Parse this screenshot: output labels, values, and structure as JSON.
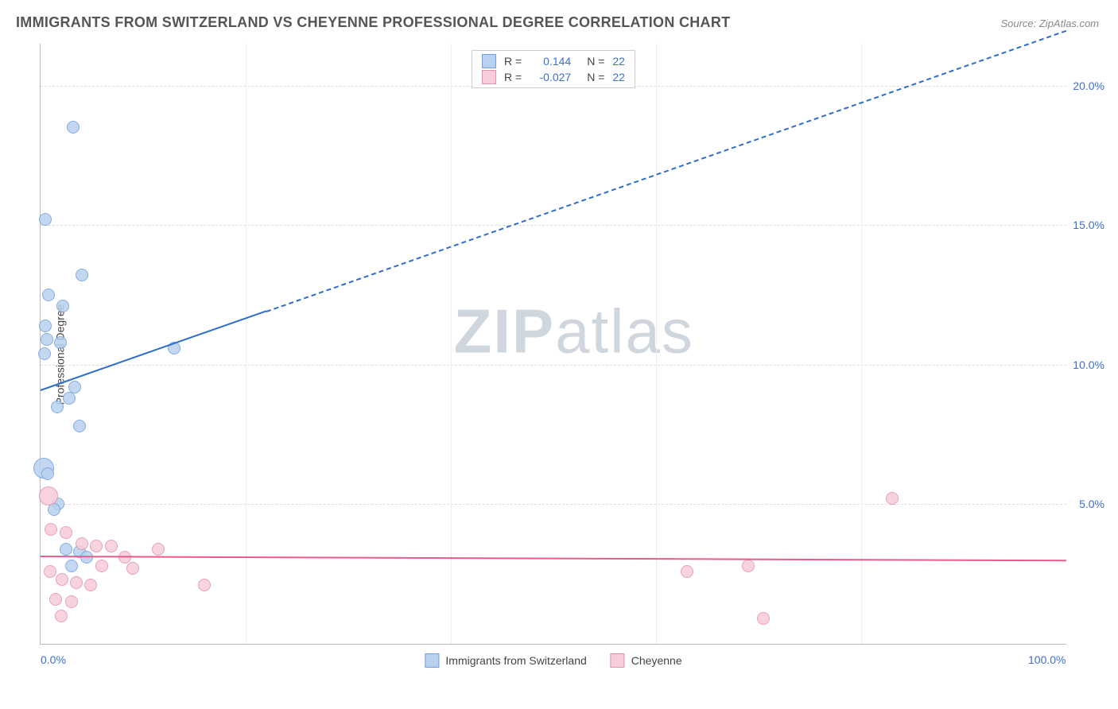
{
  "title": "IMMIGRANTS FROM SWITZERLAND VS CHEYENNE PROFESSIONAL DEGREE CORRELATION CHART",
  "source": "Source: ZipAtlas.com",
  "y_axis_label": "Professional Degree",
  "watermark_bold": "ZIP",
  "watermark_rest": "atlas",
  "chart": {
    "xlim": [
      0,
      100
    ],
    "ylim": [
      0,
      21.5
    ],
    "x_ticks": [
      {
        "value": 0,
        "label": "0.0%"
      },
      {
        "value": 100,
        "label": "100.0%"
      }
    ],
    "y_ticks": [
      {
        "value": 5,
        "label": "5.0%"
      },
      {
        "value": 10,
        "label": "10.0%"
      },
      {
        "value": 15,
        "label": "15.0%"
      },
      {
        "value": 20,
        "label": "20.0%"
      }
    ],
    "v_gridlines": [
      20,
      40,
      60,
      80
    ],
    "background": "#ffffff",
    "grid_color": "#dddddd"
  },
  "series": [
    {
      "id": "swiss",
      "label": "Immigrants from Switzerland",
      "fill": "#b9d1ef",
      "stroke": "#6fa0dd",
      "line_color": "#2f6cd0",
      "R": "0.144",
      "N": "22",
      "marker_radius": 8,
      "points": [
        {
          "x": 3.2,
          "y": 18.5,
          "r": 8
        },
        {
          "x": 0.5,
          "y": 15.2,
          "r": 8
        },
        {
          "x": 4.0,
          "y": 13.2,
          "r": 8
        },
        {
          "x": 0.8,
          "y": 12.5,
          "r": 8
        },
        {
          "x": 2.2,
          "y": 12.1,
          "r": 8
        },
        {
          "x": 0.5,
          "y": 11.4,
          "r": 8
        },
        {
          "x": 0.6,
          "y": 10.9,
          "r": 8
        },
        {
          "x": 1.9,
          "y": 10.8,
          "r": 8
        },
        {
          "x": 13.0,
          "y": 10.6,
          "r": 8
        },
        {
          "x": 0.4,
          "y": 10.4,
          "r": 8
        },
        {
          "x": 3.3,
          "y": 9.2,
          "r": 8
        },
        {
          "x": 2.8,
          "y": 8.8,
          "r": 8
        },
        {
          "x": 1.6,
          "y": 8.5,
          "r": 8
        },
        {
          "x": 3.8,
          "y": 7.8,
          "r": 8
        },
        {
          "x": 0.3,
          "y": 6.3,
          "r": 13
        },
        {
          "x": 0.7,
          "y": 6.1,
          "r": 8
        },
        {
          "x": 1.7,
          "y": 5.0,
          "r": 8
        },
        {
          "x": 1.3,
          "y": 4.8,
          "r": 8
        },
        {
          "x": 2.5,
          "y": 3.4,
          "r": 8
        },
        {
          "x": 3.8,
          "y": 3.3,
          "r": 8
        },
        {
          "x": 3.0,
          "y": 2.8,
          "r": 8
        },
        {
          "x": 4.5,
          "y": 3.1,
          "r": 8
        }
      ],
      "trend": {
        "x1": 0,
        "y1": 9.1,
        "x2": 100,
        "y2": 22.0,
        "solid_frac": 0.22
      }
    },
    {
      "id": "cheyenne",
      "label": "Cheyenne",
      "fill": "#f6cdd8",
      "stroke": "#e590ab",
      "line_color": "#e65d89",
      "R": "-0.027",
      "N": "22",
      "marker_radius": 8,
      "points": [
        {
          "x": 0.8,
          "y": 5.3,
          "r": 12
        },
        {
          "x": 83.0,
          "y": 5.2,
          "r": 8
        },
        {
          "x": 1.0,
          "y": 4.1,
          "r": 8
        },
        {
          "x": 2.5,
          "y": 4.0,
          "r": 8
        },
        {
          "x": 4.0,
          "y": 3.6,
          "r": 8
        },
        {
          "x": 5.4,
          "y": 3.5,
          "r": 8
        },
        {
          "x": 6.9,
          "y": 3.5,
          "r": 8
        },
        {
          "x": 8.2,
          "y": 3.1,
          "r": 8
        },
        {
          "x": 11.5,
          "y": 3.4,
          "r": 8
        },
        {
          "x": 6.0,
          "y": 2.8,
          "r": 8
        },
        {
          "x": 9.0,
          "y": 2.7,
          "r": 8
        },
        {
          "x": 0.9,
          "y": 2.6,
          "r": 8
        },
        {
          "x": 2.1,
          "y": 2.3,
          "r": 8
        },
        {
          "x": 3.5,
          "y": 2.2,
          "r": 8
        },
        {
          "x": 4.9,
          "y": 2.1,
          "r": 8
        },
        {
          "x": 16.0,
          "y": 2.1,
          "r": 8
        },
        {
          "x": 1.5,
          "y": 1.6,
          "r": 8
        },
        {
          "x": 3.0,
          "y": 1.5,
          "r": 8
        },
        {
          "x": 63.0,
          "y": 2.6,
          "r": 8
        },
        {
          "x": 69.0,
          "y": 2.8,
          "r": 8
        },
        {
          "x": 70.5,
          "y": 0.9,
          "r": 8
        },
        {
          "x": 2.0,
          "y": 1.0,
          "r": 8
        }
      ],
      "trend": {
        "x1": 0,
        "y1": 3.15,
        "x2": 100,
        "y2": 3.0,
        "solid_frac": 1.0
      }
    }
  ],
  "legend_top": {
    "R_label": "R =",
    "N_label": "N ="
  },
  "colors": {
    "title": "#555555",
    "tick": "#3b6fd6",
    "r_value": "#3b6fd6"
  }
}
